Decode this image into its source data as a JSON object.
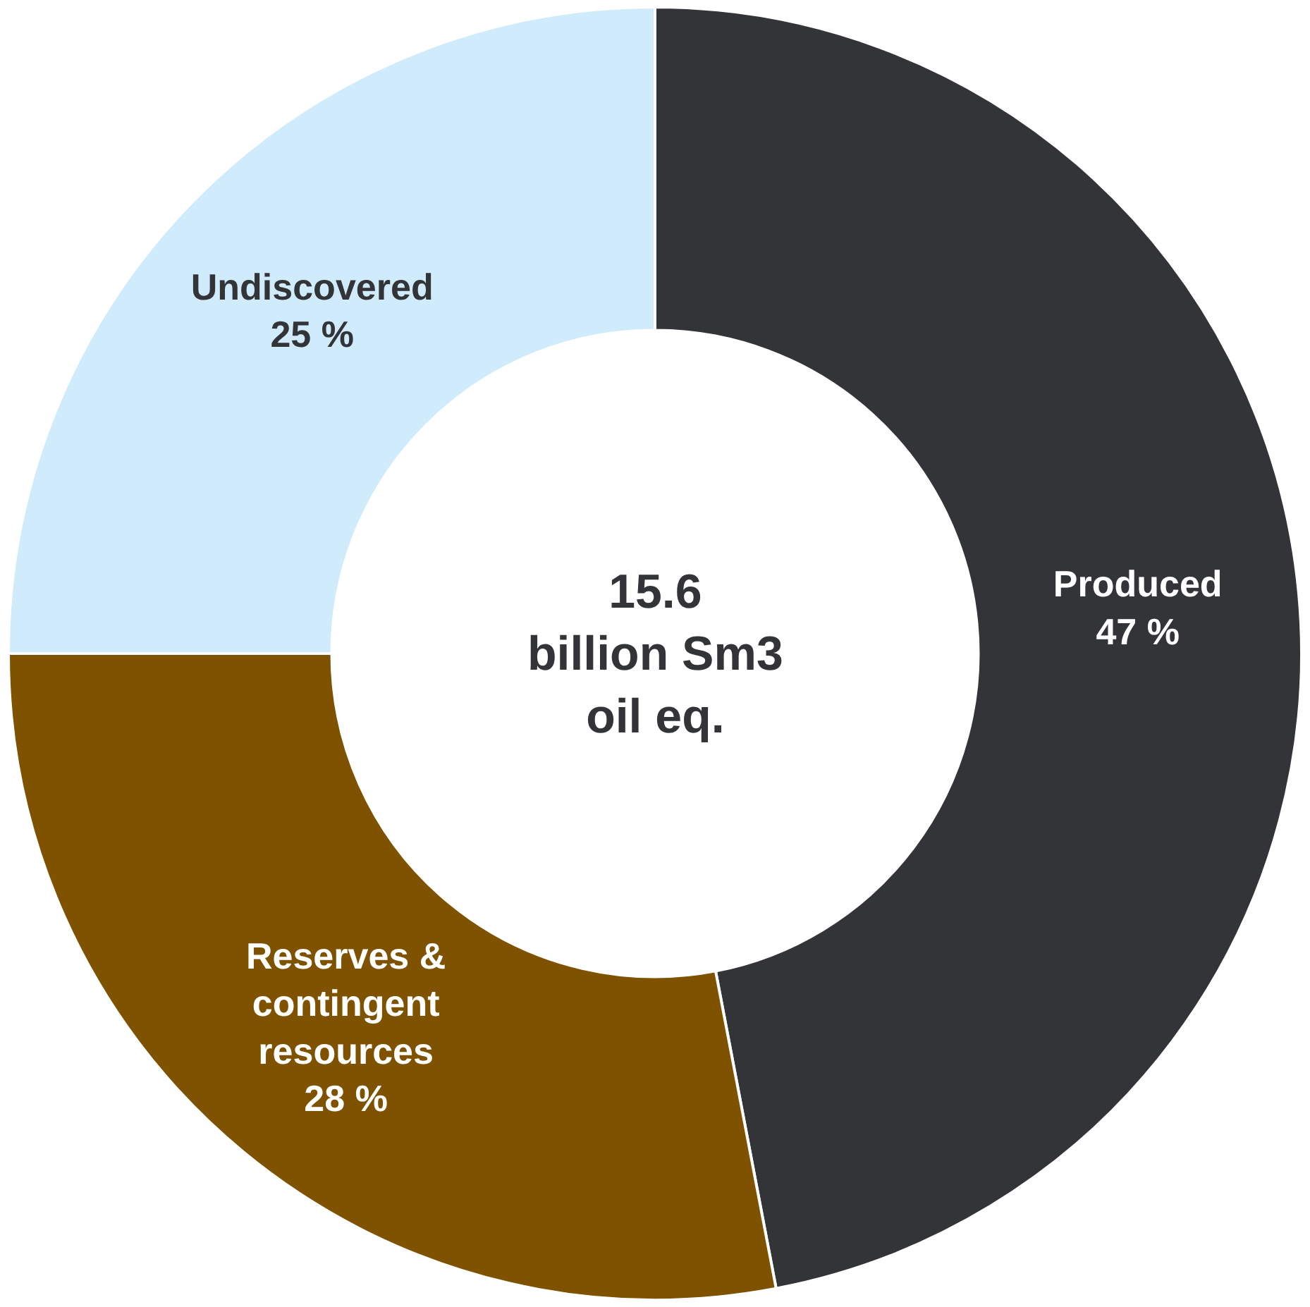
{
  "chart_data": {
    "type": "donut",
    "categories": [
      "Produced",
      "Reserves & contingent resources",
      "Undiscovered"
    ],
    "values": [
      47,
      28,
      25
    ],
    "value_labels": [
      "47 %",
      "28 %",
      "25 %"
    ],
    "colors": [
      "#333438",
      "#7f5200",
      "#d0ebfb"
    ],
    "annotations": [
      "15.6\nbillion Sm3\noil eq."
    ],
    "legend": false
  }
}
